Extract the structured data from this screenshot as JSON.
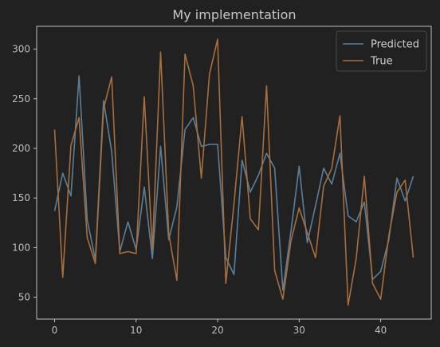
{
  "chart_data": {
    "type": "line",
    "title": "My implementation",
    "xlabel": "",
    "ylabel": "",
    "xlim": [
      -2.2,
      46.2
    ],
    "ylim": [
      28,
      323
    ],
    "xticks": [
      0,
      10,
      20,
      30,
      40
    ],
    "yticks": [
      50,
      100,
      150,
      200,
      250,
      300
    ],
    "grid": false,
    "legend_position": "top-right",
    "background": "#212121",
    "series": [
      {
        "name": "Predicted",
        "color": "#5b7f99",
        "x": [
          0,
          1,
          2,
          3,
          4,
          5,
          6,
          7,
          8,
          9,
          10,
          11,
          12,
          13,
          14,
          15,
          16,
          17,
          18,
          19,
          20,
          21,
          22,
          23,
          24,
          25,
          26,
          27,
          28,
          29,
          30,
          31,
          32,
          33,
          34,
          35,
          36,
          37,
          38,
          39,
          40,
          41,
          42,
          43,
          44
        ],
        "values": [
          137,
          175,
          152,
          273,
          128,
          88,
          248,
          197,
          96,
          126,
          98,
          161,
          89,
          202,
          108,
          141,
          219,
          231,
          202,
          204,
          204,
          90,
          73,
          188,
          156,
          173,
          195,
          180,
          57,
          117,
          182,
          105,
          142,
          180,
          164,
          195,
          132,
          126,
          146,
          68,
          76,
          108,
          170,
          147,
          172
        ]
      },
      {
        "name": "True",
        "color": "#a86e3e",
        "x": [
          0,
          1,
          2,
          3,
          4,
          5,
          6,
          7,
          8,
          9,
          10,
          11,
          12,
          13,
          14,
          15,
          16,
          17,
          18,
          19,
          20,
          21,
          22,
          23,
          24,
          25,
          26,
          27,
          28,
          29,
          30,
          31,
          32,
          33,
          34,
          35,
          36,
          37,
          38,
          39,
          40,
          41,
          42,
          43,
          44
        ],
        "values": [
          219,
          70,
          203,
          231,
          110,
          84,
          240,
          272,
          94,
          96,
          94,
          252,
          98,
          297,
          114,
          67,
          295,
          263,
          170,
          275,
          310,
          64,
          144,
          232,
          129,
          118,
          263,
          77,
          48,
          107,
          140,
          115,
          90,
          162,
          180,
          233,
          42,
          89,
          172,
          64,
          48,
          112,
          156,
          168,
          90
        ]
      }
    ]
  }
}
